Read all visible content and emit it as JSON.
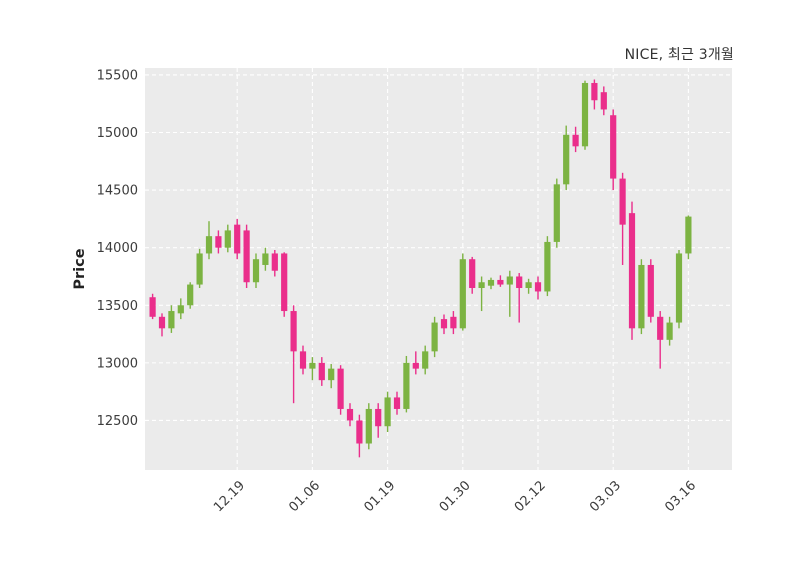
{
  "chart_data": {
    "type": "candlestick",
    "title": "NICE, 최근 3개월",
    "ylabel": "Price",
    "xlabel": "",
    "ylim": [
      12070,
      15560
    ],
    "yticks": [
      12500,
      13000,
      13500,
      14000,
      14500,
      15000,
      15500
    ],
    "xticks": [
      {
        "index": 9,
        "label": "12.19"
      },
      {
        "index": 17,
        "label": "01.06"
      },
      {
        "index": 25,
        "label": "01.19"
      },
      {
        "index": 33,
        "label": "01.30"
      },
      {
        "index": 41,
        "label": "02.12"
      },
      {
        "index": 49,
        "label": "03.03"
      },
      {
        "index": 57,
        "label": "03.16"
      }
    ],
    "grid": "white-dashed",
    "legend_position": "none",
    "colors": {
      "up": "#7cb342",
      "down": "#ea2e8b",
      "plot_bg": "#ebebeb",
      "grid": "#ffffff",
      "tick_text": "#3c3c3c"
    },
    "candles_format": [
      "open",
      "high",
      "low",
      "close"
    ],
    "candles": [
      [
        13570,
        13600,
        13380,
        13400
      ],
      [
        13400,
        13430,
        13230,
        13300
      ],
      [
        13300,
        13500,
        13260,
        13450
      ],
      [
        13430,
        13560,
        13380,
        13500
      ],
      [
        13500,
        13700,
        13470,
        13680
      ],
      [
        13680,
        13990,
        13650,
        13950
      ],
      [
        13950,
        14230,
        13900,
        14100
      ],
      [
        14100,
        14150,
        13950,
        14000
      ],
      [
        14000,
        14200,
        13960,
        14150
      ],
      [
        14200,
        14250,
        13900,
        13950
      ],
      [
        14150,
        14200,
        13650,
        13700
      ],
      [
        13700,
        13950,
        13650,
        13900
      ],
      [
        13850,
        14000,
        13800,
        13950
      ],
      [
        13950,
        13980,
        13750,
        13800
      ],
      [
        13950,
        13960,
        13400,
        13450
      ],
      [
        13450,
        13500,
        12650,
        13100
      ],
      [
        13100,
        13150,
        12900,
        12950
      ],
      [
        12950,
        13050,
        12850,
        13000
      ],
      [
        13000,
        13050,
        12800,
        12850
      ],
      [
        12850,
        12990,
        12780,
        12950
      ],
      [
        12950,
        12980,
        12550,
        12600
      ],
      [
        12600,
        12650,
        12450,
        12500
      ],
      [
        12500,
        12550,
        12180,
        12300
      ],
      [
        12300,
        12650,
        12250,
        12600
      ],
      [
        12600,
        12650,
        12350,
        12450
      ],
      [
        12450,
        12750,
        12400,
        12700
      ],
      [
        12700,
        12750,
        12550,
        12600
      ],
      [
        12600,
        13060,
        12570,
        13000
      ],
      [
        13000,
        13100,
        12900,
        12950
      ],
      [
        12950,
        13150,
        12900,
        13100
      ],
      [
        13100,
        13400,
        13050,
        13350
      ],
      [
        13380,
        13420,
        13250,
        13300
      ],
      [
        13400,
        13450,
        13250,
        13300
      ],
      [
        13300,
        13950,
        13280,
        13900
      ],
      [
        13900,
        13920,
        13600,
        13650
      ],
      [
        13650,
        13750,
        13450,
        13700
      ],
      [
        13670,
        13740,
        13640,
        13720
      ],
      [
        13720,
        13760,
        13660,
        13680
      ],
      [
        13680,
        13800,
        13400,
        13750
      ],
      [
        13750,
        13780,
        13350,
        13650
      ],
      [
        13650,
        13730,
        13600,
        13700
      ],
      [
        13700,
        13750,
        13550,
        13620
      ],
      [
        13620,
        14100,
        13580,
        14050
      ],
      [
        14050,
        14600,
        14000,
        14550
      ],
      [
        14550,
        15060,
        14500,
        14980
      ],
      [
        14980,
        15050,
        14830,
        14880
      ],
      [
        14880,
        15450,
        14850,
        15430
      ],
      [
        15430,
        15460,
        15200,
        15280
      ],
      [
        15350,
        15400,
        15150,
        15200
      ],
      [
        15150,
        15200,
        14500,
        14600
      ],
      [
        14600,
        14650,
        13850,
        14200
      ],
      [
        14300,
        14400,
        13200,
        13300
      ],
      [
        13300,
        13900,
        13250,
        13850
      ],
      [
        13850,
        13900,
        13350,
        13400
      ],
      [
        13400,
        13450,
        12950,
        13200
      ],
      [
        13200,
        13400,
        13150,
        13350
      ],
      [
        13350,
        13980,
        13300,
        13950
      ],
      [
        13950,
        14280,
        13900,
        14270
      ]
    ]
  }
}
